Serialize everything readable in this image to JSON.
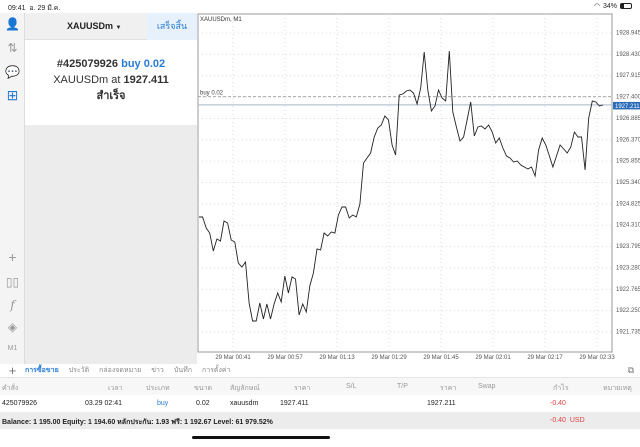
{
  "status": {
    "time": "09:41",
    "date": "อ. 29 มี.ค.",
    "battery": "34%",
    "battery_level": 0.34
  },
  "left_toolbar": {
    "icons": [
      "accounts-icon",
      "trade-icon",
      "chat-icon",
      "new-order-icon",
      "crosshair-icon",
      "chart-type-icon",
      "indicators-icon",
      "objects-icon"
    ],
    "timeframe": "M1"
  },
  "order_panel": {
    "symbol": "XAUUSDm",
    "done_label": "เสร็จสิ้น",
    "ticket": "#425079926",
    "side_volume": "buy 0.02",
    "symbol_at": "XAUUSDm at",
    "price": "1927.411",
    "result": "สำเร็จ"
  },
  "chart_data": {
    "type": "line",
    "title": "XAUUSDm, M1",
    "yticks": [
      "1928.945",
      "1928.430",
      "1927.915",
      "1927.400",
      "1926.885",
      "1926.370",
      "1925.855",
      "1925.340",
      "1924.825",
      "1924.310",
      "1923.795",
      "1923.280",
      "1922.765",
      "1922.250",
      "1921.735"
    ],
    "ylim": [
      1921.735,
      1928.945
    ],
    "xticks": [
      "29 Mar 00:41",
      "29 Mar 00:57",
      "29 Mar 01:13",
      "29 Mar 01:29",
      "29 Mar 01:45",
      "29 Mar 02:01",
      "29 Mar 02:17",
      "29 Mar 02:33"
    ],
    "order_line": {
      "label": "buy 0.02",
      "price": 1927.411
    },
    "current_price": {
      "label": "1927.211",
      "price": 1927.211
    },
    "accent": "#2a6cb8",
    "grid": true,
    "values": [
      1924.509,
      1924.509,
      1924.244,
      1924.123,
      1923.689,
      1923.978,
      1923.93,
      1924.412,
      1924.364,
      1923.954,
      1923.906,
      1923.4,
      1923.303,
      1923.424,
      1922.435,
      1922.001,
      1922.001,
      1922.435,
      1922.05,
      1922.411,
      1922.05,
      1922.411,
      1922.676,
      1922.459,
      1923.086,
      1922.676,
      1923.062,
      1923.014,
      1922.146,
      1922.411,
      1922.218,
      1922.845,
      1923.159,
      1923.737,
      1923.713,
      1924.123,
      1924.051,
      1924.147,
      1924.123,
      1924.557,
      1924.75,
      1924.75,
      1924.485,
      1924.557,
      1924.509,
      1924.822,
      1925.811,
      1925.931,
      1926.052,
      1926.438,
      1926.655,
      1926.727,
      1926.944,
      1926.847,
      1926.245,
      1926.004,
      1927.45,
      1927.474,
      1927.547,
      1927.571,
      1927.498,
      1927.233,
      1927.619,
      1928.487,
      1927.571,
      1927.064,
      1927.185,
      1927.571,
      1927.378,
      1927.306,
      1928.511,
      1927.04,
      1926.679,
      1926.341,
      1926.438,
      1926.847,
      1927.281,
      1926.462,
      1926.679,
      1926.703,
      1926.63,
      1926.727,
      1926.558,
      1926.293,
      1926.413,
      1926.172,
      1925.979,
      1925.931,
      1925.835,
      1925.859,
      1925.762,
      1925.714,
      1925.666,
      1925.714,
      1925.497,
      1926.124,
      1926.413,
      1926.245,
      1925.979,
      1925.714,
      1925.979,
      1926.245,
      1926.148,
      1926.052,
      1926.196,
      1926.558,
      1926.438,
      1926.438,
      1925.642,
      1926.896,
      1927.306,
      1927.281,
      1927.185,
      1927.209
    ]
  },
  "bottom": {
    "tabs": [
      "การซื้อขาย",
      "ประวัติ",
      "กล่องจดหมาย",
      "ข่าว",
      "บันทึก",
      "การตั้งค่า"
    ],
    "columns": [
      "คำสั่ง",
      "เวลา",
      "ประเภท",
      "ขนาด",
      "สัญลักษณ์",
      "ราคา",
      "S/L",
      "T/P",
      "ราคา",
      "Swap",
      "กำไร",
      "หมายเหตุ"
    ],
    "row": {
      "ticket": "425079926",
      "time": "03.29 02:41",
      "type": "buy",
      "size": "0.02",
      "symbol": "xauusdm",
      "open": "1927.411",
      "sl": "",
      "tp": "",
      "price": "1927.211",
      "swap": "",
      "profit": "-0.40",
      "comment": ""
    },
    "balance": "Balance: 1 195.00 Equity: 1 194.60 หลักประกัน: 1.93 ฟรี: 1 192.67 Level: 61 979.52%",
    "total_profit": "-0.40",
    "currency": "USD"
  }
}
